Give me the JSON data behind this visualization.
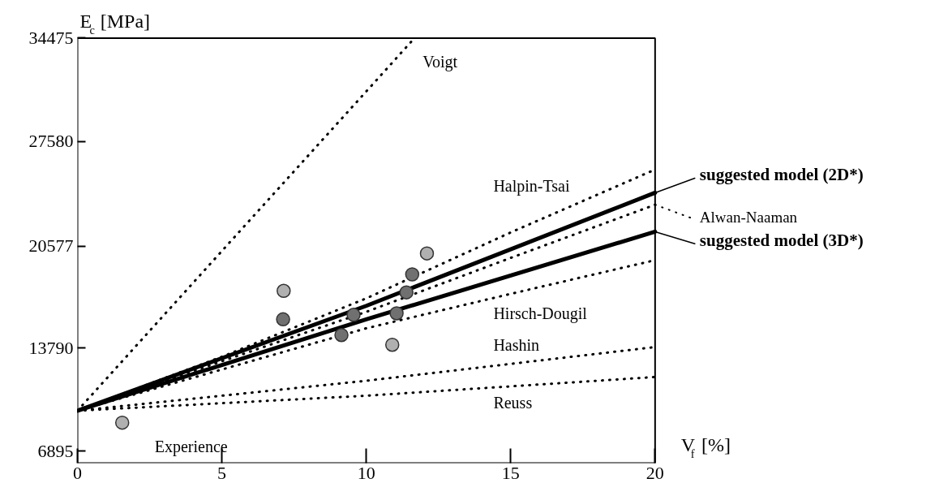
{
  "chart_data": {
    "type": "line",
    "xlabel": "V$_{f}$ [%]",
    "ylabel": "E$_{c}$ [MPa]",
    "xlim": [
      0,
      20
    ],
    "xticks": [
      0,
      5,
      10,
      15,
      20
    ],
    "ylim": [
      6100,
      34475
    ],
    "yticks": [
      6895,
      13790,
      20577,
      27580,
      34475
    ],
    "grid": false,
    "legend": "right",
    "series": [
      {
        "name": "Voigt",
        "color": "#000000",
        "line_style": "dotted",
        "x": [
          0,
          11.67
        ],
        "values": [
          9600,
          34475
        ]
      },
      {
        "name": "Halpin-Tsai",
        "color": "#000000",
        "line_style": "dotted",
        "x": [
          0,
          5,
          10,
          15,
          20
        ],
        "values": [
          9600,
          13200,
          17100,
          21500,
          25700
        ]
      },
      {
        "name": "suggested model (2D*)",
        "color": "#000000",
        "line_style": "solid",
        "x": [
          0,
          10,
          20
        ],
        "values": [
          9600,
          16600,
          24150
        ]
      },
      {
        "name": "Alwan-Naaman",
        "color": "#000000",
        "line_style": "dotted",
        "x": [
          0,
          5,
          10,
          15,
          20
        ],
        "values": [
          9600,
          12900,
          16200,
          19800,
          23350
        ]
      },
      {
        "name": "suggested model (3D*)",
        "color": "#000000",
        "line_style": "solid",
        "x": [
          0,
          10,
          20
        ],
        "values": [
          9600,
          15700,
          21550
        ]
      },
      {
        "name": "Hirsch-Dougil",
        "color": "#000000",
        "line_style": "dotted",
        "x": [
          0,
          10,
          15,
          20
        ],
        "values": [
          9600,
          15100,
          17400,
          19650
        ]
      },
      {
        "name": "Hashin",
        "color": "#000000",
        "line_style": "dotted",
        "x": [
          0,
          10,
          20
        ],
        "values": [
          9600,
          11600,
          13850
        ]
      },
      {
        "name": "Reuss",
        "color": "#000000",
        "line_style": "dotted",
        "x": [
          0,
          10,
          20
        ],
        "values": [
          9600,
          10600,
          11850
        ]
      },
      {
        "name": "Experience",
        "type": "scatter",
        "marker": "circle",
        "x": [
          1.55,
          7.14,
          12.1,
          10.9,
          7.12,
          9.56,
          9.14,
          11.59,
          11.39,
          11.05
        ],
        "values": [
          8800,
          17600,
          20100,
          14000,
          15700,
          16000,
          14650,
          18700,
          17500,
          16100
        ],
        "colors": [
          "#b0b0b0",
          "#b0b0b0",
          "#b0b0b0",
          "#b0b0b0",
          "#707070",
          "#707070",
          "#707070",
          "#707070",
          "#707070",
          "#707070"
        ]
      }
    ]
  }
}
